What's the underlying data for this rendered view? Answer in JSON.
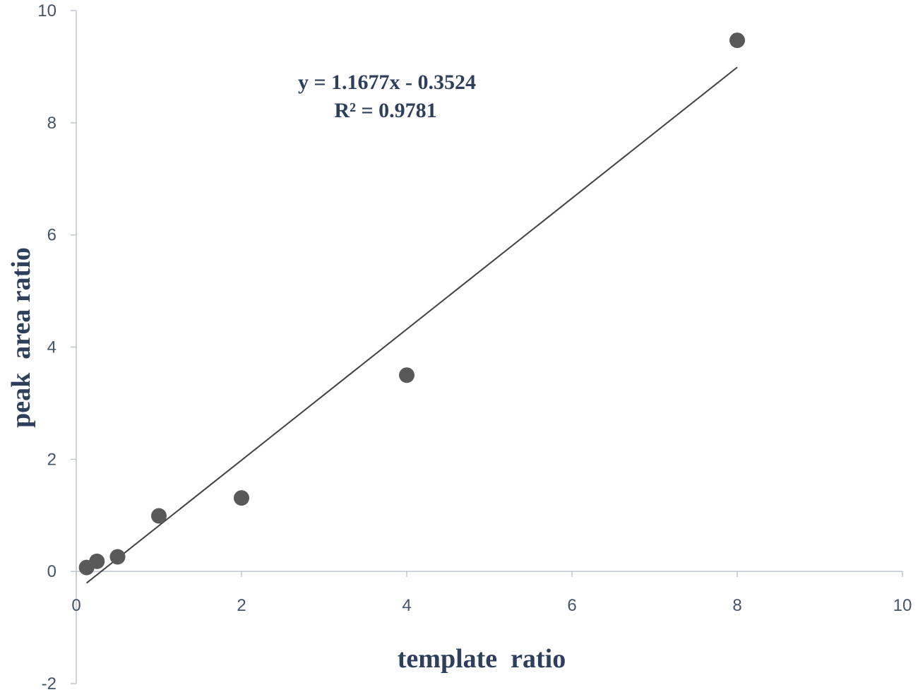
{
  "chart_data": {
    "type": "scatter",
    "x_label": "template  ratio",
    "y_label": "peak  area ratio",
    "x": [
      0.125,
      0.25,
      0.5,
      1,
      2,
      4,
      8
    ],
    "values": [
      0.07,
      0.18,
      0.26,
      0.99,
      1.31,
      3.5,
      9.47
    ],
    "color": "#595959",
    "xlim": [
      0,
      10
    ],
    "xticks": [
      0,
      2,
      4,
      6,
      8,
      10
    ],
    "ylim": [
      -2,
      10
    ],
    "yticks": [
      -2,
      0,
      2,
      4,
      6,
      8,
      10
    ],
    "grid": false,
    "trendline": {
      "slope": 1.1677,
      "intercept": -0.3524,
      "color": "#404040",
      "equation": "y = 1.1677x - 0.3524",
      "r_squared": "R² = 0.9781"
    }
  }
}
